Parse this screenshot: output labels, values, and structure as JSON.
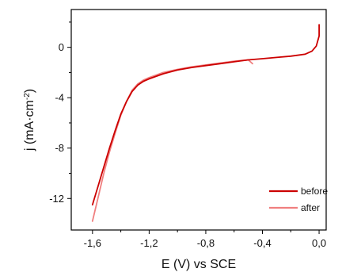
{
  "chart_data": {
    "type": "line",
    "xlabel": "E (V) vs SCE",
    "ylabel_main": "j (mA·cm",
    "ylabel_sup": "-2",
    "ylabel_close": ")",
    "xlim": [
      -1.75,
      0.05
    ],
    "ylim": [
      -14.5,
      3.0
    ],
    "xticks": [
      -1.6,
      -1.2,
      -0.8,
      -0.4,
      0.0
    ],
    "xtick_labels": [
      "-1,6",
      "-1,2",
      "-0,8",
      "-0,4",
      "0,0"
    ],
    "yticks": [
      -12,
      -8,
      -4,
      0
    ],
    "ytick_labels": [
      "-12",
      "-8",
      "-4",
      "0"
    ],
    "grid": false,
    "legend_position": "bottom-right",
    "series": [
      {
        "name": "before",
        "color": "#cc0000",
        "x": [
          -1.6,
          -1.56,
          -1.52,
          -1.48,
          -1.44,
          -1.4,
          -1.36,
          -1.32,
          -1.28,
          -1.24,
          -1.2,
          -1.1,
          -1.0,
          -0.9,
          -0.8,
          -0.7,
          -0.6,
          -0.5,
          -0.4,
          -0.3,
          -0.2,
          -0.1,
          -0.05,
          -0.02,
          0.0,
          0.0
        ],
        "y": [
          -12.5,
          -11.0,
          -9.5,
          -8.0,
          -6.6,
          -5.3,
          -4.3,
          -3.5,
          -3.0,
          -2.7,
          -2.5,
          -2.1,
          -1.8,
          -1.6,
          -1.45,
          -1.3,
          -1.15,
          -1.0,
          -0.9,
          -0.8,
          -0.7,
          -0.55,
          -0.3,
          0.1,
          0.9,
          1.8
        ]
      },
      {
        "name": "after",
        "color": "#f07f7f",
        "x": [
          -1.6,
          -1.56,
          -1.52,
          -1.48,
          -1.44,
          -1.4,
          -1.36,
          -1.32,
          -1.28,
          -1.24,
          -1.2,
          -1.1,
          -1.0,
          -0.9,
          -0.8,
          -0.7,
          -0.6,
          -0.55,
          -0.5,
          -0.47
        ],
        "y": [
          -13.8,
          -11.9,
          -10.0,
          -8.3,
          -6.8,
          -5.4,
          -4.3,
          -3.4,
          -2.9,
          -2.6,
          -2.4,
          -2.0,
          -1.75,
          -1.55,
          -1.4,
          -1.25,
          -1.1,
          -1.05,
          -1.0,
          -1.3
        ]
      }
    ]
  }
}
